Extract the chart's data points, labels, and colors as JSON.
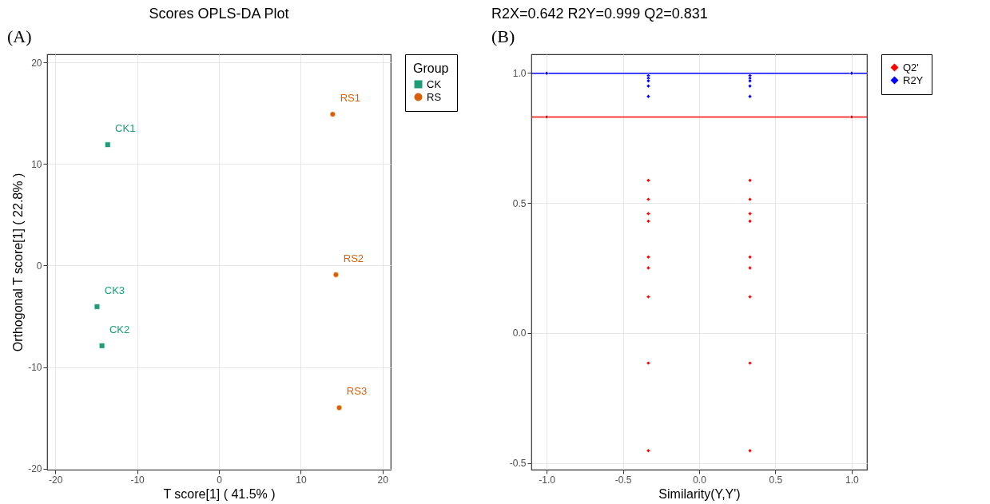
{
  "chart_data": [
    {
      "type": "scatter",
      "title": "Scores OPLS-DA Plot",
      "xlabel": "T score[1] ( 41.5% )",
      "ylabel": "Orthogonal T score[1] ( 22.8% )",
      "legend_title": "Group",
      "legend": "right",
      "grid": true,
      "xlim": [
        -21,
        21
      ],
      "ylim": [
        -20.1,
        20.8
      ],
      "xticks": [
        -20,
        -10,
        0,
        10,
        20
      ],
      "yticks": [
        -20,
        -10,
        0,
        10,
        20
      ],
      "series": [
        {
          "name": "CK",
          "color": "#1b9e77",
          "marker": "square",
          "x": [
            -13.6,
            -14.3,
            -14.9
          ],
          "values": [
            11.9,
            -7.9,
            -4.05
          ]
        },
        {
          "name": "RS",
          "color": "#d95f02",
          "marker": "circle",
          "x": [
            13.9,
            14.3,
            14.7
          ],
          "values": [
            14.9,
            -0.9,
            -14.0
          ]
        }
      ],
      "annotations": [
        "(A)",
        {
          "text": "CK1",
          "x": -13.6,
          "y": 11.9
        },
        {
          "text": "CK2",
          "x": -14.3,
          "y": -7.9
        },
        {
          "text": "CK3",
          "x": -14.9,
          "y": -4.05
        },
        {
          "text": "RS1",
          "x": 13.9,
          "y": 14.9
        },
        {
          "text": "RS2",
          "x": 14.3,
          "y": -0.9
        },
        {
          "text": "RS3",
          "x": 14.7,
          "y": -14.0
        }
      ]
    },
    {
      "type": "scatter",
      "title": "R2X=0.642  R2Y=0.999  Q2=0.831",
      "xlabel": "Similarity(Y,Y')",
      "legend": "right",
      "grid": true,
      "marker": "diamond",
      "xlim": [
        -1.1,
        1.1
      ],
      "ylim": [
        -0.526,
        1.072
      ],
      "xticks": [
        {
          "value": -1,
          "label": "-1.0"
        },
        -0.5,
        {
          "value": 0,
          "label": "0.0"
        },
        0.5,
        {
          "value": 1,
          "label": "1.0"
        }
      ],
      "yticks": [
        -0.5,
        {
          "value": 0,
          "label": "0.0"
        },
        0.5,
        {
          "value": 1,
          "label": "1.0"
        }
      ],
      "series": [
        {
          "name": "Q2'",
          "color": "#ff0000",
          "x": [
            -1,
            -0.333,
            -0.333,
            -0.333,
            -0.333,
            -0.333,
            -0.333,
            -0.333,
            -0.333,
            -0.333,
            0.333,
            0.333,
            0.333,
            0.333,
            0.333,
            0.333,
            0.333,
            0.333,
            0.333,
            1
          ],
          "values": [
            0.831,
            0.587,
            0.514,
            0.459,
            0.43,
            0.292,
            0.25,
            0.139,
            -0.116,
            -0.453,
            0.587,
            0.514,
            0.459,
            0.43,
            0.292,
            0.25,
            0.139,
            -0.116,
            -0.453,
            0.831
          ]
        },
        {
          "name": "R2Y",
          "color": "#0000ff",
          "x": [
            -1,
            -0.333,
            -0.333,
            -0.333,
            -0.333,
            -0.333,
            0.333,
            0.333,
            0.333,
            0.333,
            0.333,
            1
          ],
          "values": [
            0.999,
            0.99,
            0.98,
            0.97,
            0.95,
            0.91,
            0.99,
            0.98,
            0.97,
            0.95,
            0.91,
            0.999
          ]
        }
      ],
      "ref_lines": [
        {
          "axis": "y",
          "value": 0.999,
          "color": "#0000ff"
        },
        {
          "axis": "y",
          "value": 0.831,
          "color": "#ff0000"
        }
      ],
      "annotations": [
        "(B)"
      ]
    }
  ]
}
